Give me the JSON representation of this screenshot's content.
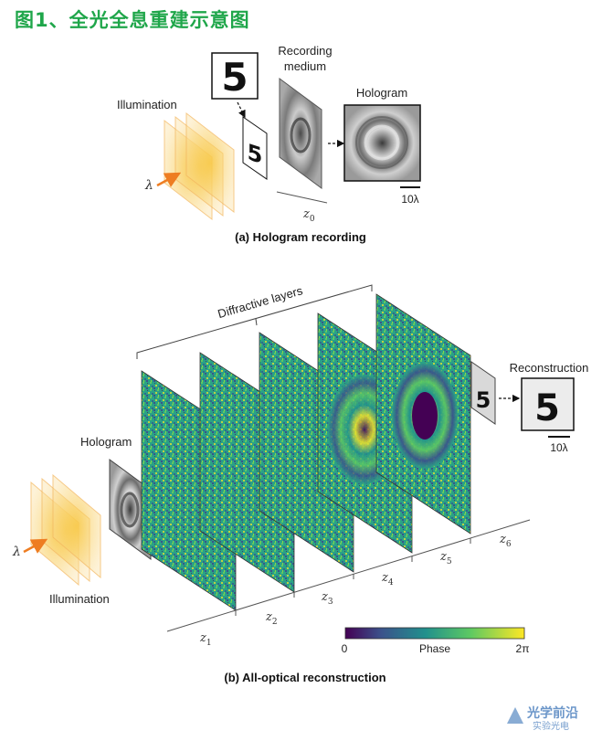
{
  "figure_title": "图1、全光全息重建示意图",
  "part_a": {
    "illumination": "Illumination",
    "lambda": "λ",
    "recording_medium_line1": "Recording",
    "recording_medium_line2": "medium",
    "hologram": "Hologram",
    "scale_bar": "10λ",
    "z0": "z",
    "z0_sub": "0",
    "digit": "5",
    "caption": "(a) Hologram recording"
  },
  "part_b": {
    "diffractive_layers": "Diffractive layers",
    "hologram": "Hologram",
    "illumination": "Illumination",
    "lambda": "λ",
    "reconstruction": "Reconstruction",
    "scale_bar": "10λ",
    "digit": "5",
    "distances": [
      {
        "z": "z",
        "sub": "1"
      },
      {
        "z": "z",
        "sub": "2"
      },
      {
        "z": "z",
        "sub": "3"
      },
      {
        "z": "z",
        "sub": "4"
      },
      {
        "z": "z",
        "sub": "5"
      },
      {
        "z": "z",
        "sub": "6"
      }
    ],
    "colorbar_min": "0",
    "colorbar_label": "Phase",
    "colorbar_max": "2π",
    "caption": "(b) All-optical reconstruction"
  },
  "watermark_line1": "光学前沿",
  "watermark_line2": "实验光电",
  "colors": {
    "title": "#1fa64a",
    "illumination": "#f6c45a",
    "arrow": "#ee7d22"
  }
}
